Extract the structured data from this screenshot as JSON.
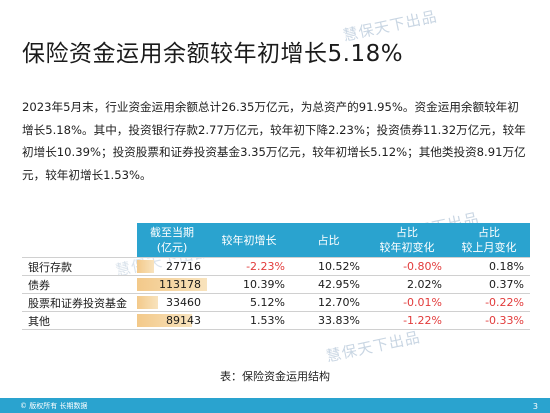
{
  "slide": {
    "title": "保险资金运用余额较年初增长5.18%",
    "watermark": "慧保天下出品",
    "body": "2023年5月末，行业资金运用余额总计26.35万亿元，为总资产的91.95%。资金运用余额较年初增长5.18%。其中，投资银行存款2.77万亿元，较年初下降2.23%；投资债券11.32万亿元，较年初增长10.39%；投资股票和证券投资基金3.35万亿元，较年初增长5.12%；其他类投资8.91万亿元，较年初增长1.53%。"
  },
  "table": {
    "headers": {
      "col1_line1": "截至当期",
      "col1_line2": "(亿元)",
      "col2": "较年初增长",
      "col3": "占比",
      "col4_line1": "占比",
      "col4_line2": "较年初变化",
      "col5_line1": "占比",
      "col5_line2": "较上月变化"
    },
    "rows": [
      {
        "label": "银行存款",
        "amount": "27716",
        "growth": "-2.23%",
        "share": "10.52%",
        "share_ytd": "-0.80%",
        "share_mom": "0.18%",
        "bar": 0.245
      },
      {
        "label": "债券",
        "amount": "113178",
        "growth": "10.39%",
        "share": "42.95%",
        "share_ytd": "2.02%",
        "share_mom": "0.37%",
        "bar": 1.0
      },
      {
        "label": "股票和证券投资基金",
        "amount": "33460",
        "growth": "5.12%",
        "share": "12.70%",
        "share_ytd": "-0.01%",
        "share_mom": "-0.22%",
        "bar": 0.296
      },
      {
        "label": "其他",
        "amount": "89143",
        "growth": "1.53%",
        "share": "33.83%",
        "share_ytd": "-1.22%",
        "share_mom": "-0.33%",
        "bar": 0.788
      }
    ]
  },
  "caption": "表：保险资金运用结构",
  "footer": {
    "copyright": "© 版权所有 长期数据",
    "page": "3"
  },
  "colors": {
    "accent": "#2aa3cf",
    "negative": "#e23b3b",
    "bar": "#f3c98a"
  }
}
